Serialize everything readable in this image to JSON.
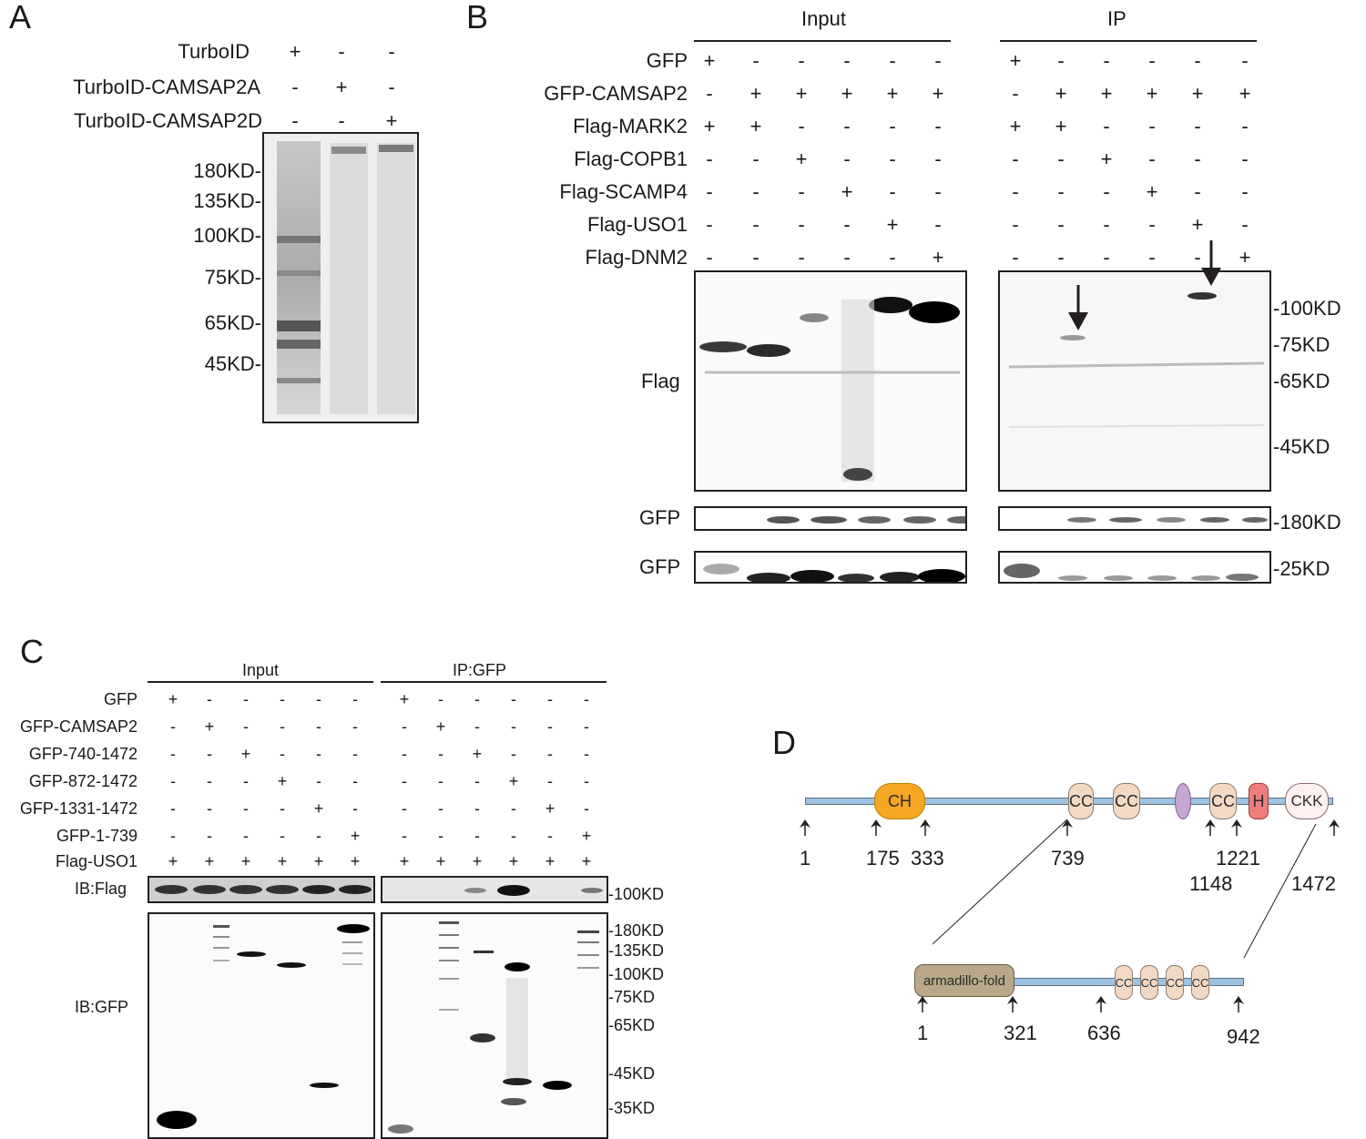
{
  "panel_a": {
    "letter": "A",
    "rows": [
      {
        "label": "TurboID",
        "signs": [
          "+",
          "-",
          "-"
        ]
      },
      {
        "label": "TurboID-CAMSAP2A",
        "signs": [
          "-",
          "+",
          "-"
        ]
      },
      {
        "label": "TurboID-CAMSAP2D",
        "signs": [
          "-",
          "-",
          "+"
        ]
      }
    ],
    "markers": [
      "180KD-",
      "135KD-",
      "100KD-",
      "75KD-",
      "65KD-",
      "45KD-"
    ]
  },
  "panel_b": {
    "letter": "B",
    "group_input": "Input",
    "group_ip": "IP",
    "rows": [
      {
        "label": "GFP",
        "signs": [
          "+",
          "-",
          "-",
          "-",
          "-",
          "-"
        ]
      },
      {
        "label": "GFP-CAMSAP2",
        "signs": [
          "-",
          "+",
          "+",
          "+",
          "+",
          "+"
        ]
      },
      {
        "label": "Flag-MARK2",
        "signs": [
          "+",
          "+",
          "-",
          "-",
          "-",
          "-"
        ]
      },
      {
        "label": "Flag-COPB1",
        "signs": [
          "-",
          "-",
          "+",
          "-",
          "-",
          "-"
        ]
      },
      {
        "label": "Flag-SCAMP4",
        "signs": [
          "-",
          "-",
          "-",
          "+",
          "-",
          "-"
        ]
      },
      {
        "label": "Flag-USO1",
        "signs": [
          "-",
          "-",
          "-",
          "-",
          "+",
          "-"
        ]
      },
      {
        "label": "Flag-DNM2",
        "signs": [
          "-",
          "-",
          "-",
          "-",
          "-",
          "+"
        ]
      }
    ],
    "blot_labels": {
      "flag": "Flag",
      "gfp_top": "GFP",
      "gfp_bottom": "GFP"
    },
    "markers_flag": [
      "-100KD",
      "-75KD",
      "-65KD",
      "-45KD"
    ],
    "marker_gfp_top": "-180KD",
    "marker_gfp_bottom": "-25KD"
  },
  "panel_c": {
    "letter": "C",
    "group_input": "Input",
    "group_ip": "IP:GFP",
    "rows": [
      {
        "label": "GFP",
        "signs": [
          "+",
          "-",
          "-",
          "-",
          "-",
          "-"
        ]
      },
      {
        "label": "GFP-CAMSAP2",
        "signs": [
          "-",
          "+",
          "-",
          "-",
          "-",
          "-"
        ]
      },
      {
        "label": "GFP-740-1472",
        "signs": [
          "-",
          "-",
          "+",
          "-",
          "-",
          "-"
        ]
      },
      {
        "label": "GFP-872-1472",
        "signs": [
          "-",
          "-",
          "-",
          "+",
          "-",
          "-"
        ]
      },
      {
        "label": "GFP-1331-1472",
        "signs": [
          "-",
          "-",
          "-",
          "-",
          "+",
          "-"
        ]
      },
      {
        "label": "GFP-1-739",
        "signs": [
          "-",
          "-",
          "-",
          "-",
          "-",
          "+"
        ]
      },
      {
        "label": "Flag-USO1",
        "signs": [
          "+",
          "+",
          "+",
          "+",
          "+",
          "+"
        ]
      }
    ],
    "blot_labels": {
      "ib_flag": "IB:Flag",
      "ib_gfp": "IB:GFP"
    },
    "marker_flag": "-100KD",
    "markers_gfp": [
      "-180KD",
      "-135KD",
      "-100KD",
      "-75KD",
      "-65KD",
      "-45KD",
      "-35KD"
    ]
  },
  "panel_d": {
    "letter": "D",
    "full_length": {
      "domains": [
        "CH",
        "CC",
        "CC",
        "CC",
        "H",
        "CKK"
      ],
      "positions": [
        "1",
        "175",
        "333",
        "739",
        "1148",
        "1221",
        "1472"
      ]
    },
    "fragment": {
      "domains": [
        "armadillo-fold",
        "CC",
        "CC",
        "CC",
        "CC"
      ],
      "positions": [
        "1",
        "321",
        "636",
        "942"
      ]
    },
    "colors": {
      "backbone": "#9cc3e4",
      "ch": "#f5a623",
      "cc": "#f2d9c4",
      "ellipse": "#c7a6d4",
      "h": "#f07c7c",
      "ckk": "#fdf0f0",
      "armadillo": "#b8a889"
    }
  }
}
